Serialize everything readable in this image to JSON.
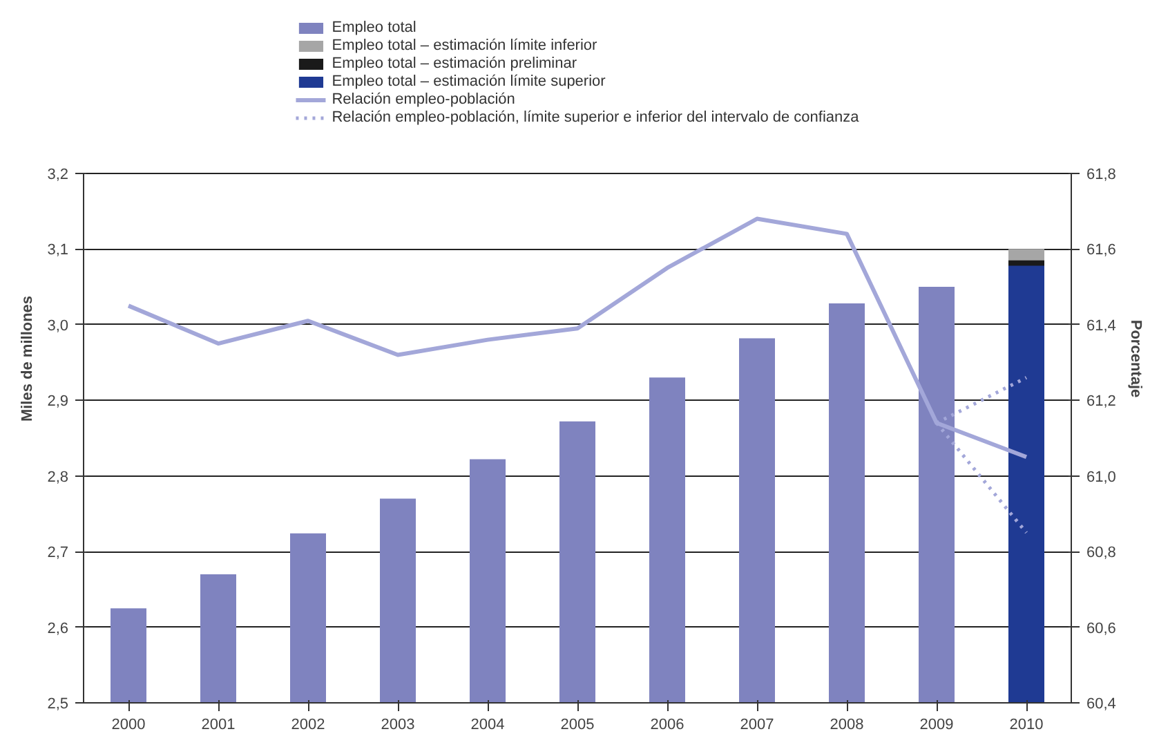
{
  "chart_data": {
    "type": "bar",
    "ylabel": "Miles de millones",
    "y2label": "Porcentaje",
    "categories": [
      "2000",
      "2001",
      "2002",
      "2003",
      "2004",
      "2005",
      "2006",
      "2007",
      "2008",
      "2009",
      "2010"
    ],
    "series": [
      {
        "name": "Empleo total",
        "color": "#7f83bf",
        "values": [
          2.625,
          2.67,
          2.724,
          2.77,
          2.822,
          2.872,
          2.93,
          2.982,
          3.028,
          3.05,
          null
        ]
      },
      {
        "name": "Empleo total – estimación límite inferior",
        "color": "#a6a6a6",
        "values": [
          null,
          null,
          null,
          null,
          null,
          null,
          null,
          null,
          null,
          null,
          3.1
        ]
      },
      {
        "name": "Empleo total – estimación preliminar",
        "color": "#1a1a1a",
        "values": [
          null,
          null,
          null,
          null,
          null,
          null,
          null,
          null,
          null,
          null,
          3.085
        ]
      },
      {
        "name": "Empleo total – estimación límite superior",
        "color": "#1f3a93",
        "values": [
          null,
          null,
          null,
          null,
          null,
          null,
          null,
          null,
          null,
          null,
          3.078
        ]
      },
      {
        "name": "Relación empleo-población",
        "type": "line",
        "axis": "y2",
        "line_style": "solid",
        "color": "#a3a7d9",
        "values": [
          61.45,
          61.35,
          61.41,
          61.32,
          61.36,
          61.39,
          61.55,
          61.68,
          61.64,
          61.14,
          61.05
        ]
      },
      {
        "name": "Relación empleo-población, límite superior e inferior del intervalo de confianza",
        "type": "line",
        "axis": "y2",
        "line_style": "dotted",
        "color": "#a3a7d9",
        "values": [
          null,
          null,
          null,
          null,
          null,
          null,
          null,
          null,
          null,
          61.14,
          61.26
        ]
      },
      {
        "type": "line",
        "axis": "y2",
        "line_style": "dotted",
        "color": "#a3a7d9",
        "values": [
          null,
          null,
          null,
          null,
          null,
          null,
          null,
          null,
          null,
          61.14,
          60.85
        ]
      }
    ],
    "ylim": [
      2.5,
      3.2
    ],
    "yticks": [
      {
        "value": 2.5,
        "label": "2,5"
      },
      {
        "value": 2.6,
        "label": "2,6"
      },
      {
        "value": 2.7,
        "label": "2,7"
      },
      {
        "value": 2.8,
        "label": "2,8"
      },
      {
        "value": 2.9,
        "label": "2,9"
      },
      {
        "value": 3.0,
        "label": "3,0"
      },
      {
        "value": 3.1,
        "label": "3,1"
      },
      {
        "value": 3.2,
        "label": "3,2"
      }
    ],
    "y2lim": [
      60.4,
      61.8
    ],
    "y2ticks": [
      {
        "value": 60.4,
        "label": "60,4"
      },
      {
        "value": 60.6,
        "label": "60,6"
      },
      {
        "value": 60.8,
        "label": "60,8"
      },
      {
        "value": 61.0,
        "label": "61,0"
      },
      {
        "value": 61.2,
        "label": "61,2"
      },
      {
        "value": 61.4,
        "label": "61,4"
      },
      {
        "value": 61.6,
        "label": "61,6"
      },
      {
        "value": 61.8,
        "label": "61,8"
      }
    ],
    "grid": "y",
    "legend": "top"
  }
}
